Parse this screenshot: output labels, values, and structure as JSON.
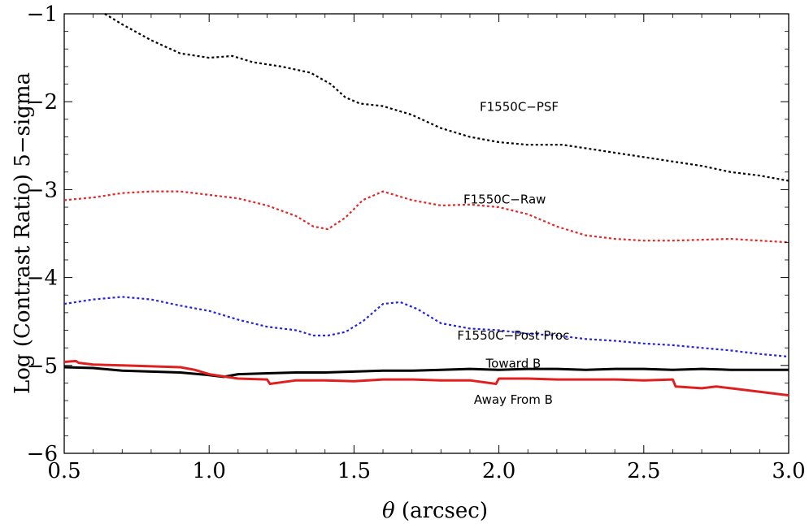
{
  "chart_data": {
    "type": "line",
    "title": "",
    "xlabel_symbol": "θ",
    "xlabel_unit": " (arcsec)",
    "ylabel": "Log (Contrast Ratio) 5−sigma",
    "xlim": [
      0.5,
      3.0
    ],
    "ylim": [
      -6,
      -1
    ],
    "x_ticks": [
      "0.5",
      "1.0",
      "1.5",
      "2.0",
      "2.5",
      "3.0"
    ],
    "y_ticks": [
      "−6",
      "−5",
      "−4",
      "−3",
      "−2",
      "−1"
    ],
    "grid": false,
    "series": [
      {
        "name": "F1550C−PSF",
        "color": "#000000",
        "style": "dotted",
        "x": [
          0.64,
          0.7,
          0.8,
          0.9,
          1.0,
          1.08,
          1.15,
          1.25,
          1.35,
          1.42,
          1.47,
          1.52,
          1.6,
          1.7,
          1.8,
          1.9,
          2.0,
          2.1,
          2.22,
          2.3,
          2.4,
          2.5,
          2.6,
          2.7,
          2.8,
          2.9,
          3.0
        ],
        "y": [
          -1.0,
          -1.12,
          -1.3,
          -1.45,
          -1.5,
          -1.48,
          -1.55,
          -1.6,
          -1.67,
          -1.8,
          -1.95,
          -2.02,
          -2.05,
          -2.15,
          -2.3,
          -2.4,
          -2.46,
          -2.49,
          -2.49,
          -2.53,
          -2.58,
          -2.63,
          -2.68,
          -2.73,
          -2.8,
          -2.84,
          -2.9
        ]
      },
      {
        "name": "F1550C−Raw",
        "color": "#e32626",
        "style": "dotted",
        "x": [
          0.5,
          0.6,
          0.7,
          0.8,
          0.9,
          1.0,
          1.1,
          1.2,
          1.3,
          1.36,
          1.41,
          1.47,
          1.53,
          1.6,
          1.7,
          1.8,
          1.9,
          2.0,
          2.1,
          2.2,
          2.3,
          2.4,
          2.5,
          2.6,
          2.7,
          2.8,
          2.9,
          3.0
        ],
        "y": [
          -3.12,
          -3.09,
          -3.04,
          -3.02,
          -3.02,
          -3.06,
          -3.1,
          -3.18,
          -3.3,
          -3.42,
          -3.45,
          -3.32,
          -3.12,
          -3.02,
          -3.12,
          -3.18,
          -3.17,
          -3.2,
          -3.28,
          -3.42,
          -3.52,
          -3.56,
          -3.58,
          -3.58,
          -3.57,
          -3.56,
          -3.58,
          -3.6
        ]
      },
      {
        "name": "F1550C−Post Proc",
        "color": "#2424e0",
        "style": "dotted",
        "x": [
          0.5,
          0.6,
          0.7,
          0.8,
          0.9,
          1.0,
          1.1,
          1.2,
          1.3,
          1.36,
          1.41,
          1.47,
          1.53,
          1.6,
          1.66,
          1.72,
          1.8,
          1.9,
          2.0,
          2.1,
          2.2,
          2.3,
          2.4,
          2.5,
          2.6,
          2.7,
          2.8,
          2.9,
          3.0
        ],
        "y": [
          -4.3,
          -4.25,
          -4.22,
          -4.25,
          -4.32,
          -4.38,
          -4.48,
          -4.56,
          -4.6,
          -4.66,
          -4.66,
          -4.62,
          -4.5,
          -4.3,
          -4.28,
          -4.36,
          -4.52,
          -4.58,
          -4.6,
          -4.64,
          -4.66,
          -4.7,
          -4.72,
          -4.75,
          -4.77,
          -4.8,
          -4.83,
          -4.87,
          -4.9
        ]
      },
      {
        "name": "Toward  B",
        "color": "#000000",
        "style": "solid",
        "x": [
          0.5,
          0.6,
          0.7,
          0.8,
          0.9,
          1.0,
          1.05,
          1.1,
          1.2,
          1.3,
          1.4,
          1.5,
          1.6,
          1.7,
          1.8,
          1.9,
          2.0,
          2.1,
          2.2,
          2.3,
          2.4,
          2.5,
          2.6,
          2.7,
          2.8,
          2.9,
          3.0
        ],
        "y": [
          -5.02,
          -5.03,
          -5.06,
          -5.07,
          -5.08,
          -5.11,
          -5.13,
          -5.1,
          -5.09,
          -5.08,
          -5.08,
          -5.07,
          -5.06,
          -5.06,
          -5.05,
          -5.04,
          -5.05,
          -5.04,
          -5.04,
          -5.05,
          -5.04,
          -5.04,
          -5.05,
          -5.04,
          -5.05,
          -5.05,
          -5.05
        ]
      },
      {
        "name": "Away From B",
        "color": "#e02020",
        "style": "solid",
        "x": [
          0.5,
          0.54,
          0.55,
          0.6,
          0.7,
          0.8,
          0.9,
          0.95,
          1.0,
          1.1,
          1.2,
          1.21,
          1.3,
          1.4,
          1.5,
          1.6,
          1.7,
          1.8,
          1.9,
          1.99,
          2.0,
          2.1,
          2.2,
          2.3,
          2.4,
          2.5,
          2.6,
          2.61,
          2.7,
          2.75,
          2.8,
          2.9,
          3.0
        ],
        "y": [
          -4.96,
          -4.95,
          -4.97,
          -4.99,
          -5.0,
          -5.01,
          -5.02,
          -5.05,
          -5.1,
          -5.15,
          -5.16,
          -5.21,
          -5.17,
          -5.17,
          -5.18,
          -5.16,
          -5.16,
          -5.17,
          -5.17,
          -5.21,
          -5.15,
          -5.15,
          -5.16,
          -5.16,
          -5.16,
          -5.17,
          -5.16,
          -5.24,
          -5.26,
          -5.24,
          -5.26,
          -5.3,
          -5.34
        ]
      }
    ],
    "annotations": [
      {
        "text": "F1550C−PSF",
        "x": 2.07,
        "y": -2.06
      },
      {
        "text": "F1550C−Raw",
        "x": 2.02,
        "y": -3.11
      },
      {
        "text": "F1550C−Post Proc",
        "x": 2.05,
        "y": -4.66
      },
      {
        "text": "Toward  B",
        "x": 2.05,
        "y": -4.98
      },
      {
        "text": "Away From B",
        "x": 2.05,
        "y": -5.39
      }
    ]
  }
}
